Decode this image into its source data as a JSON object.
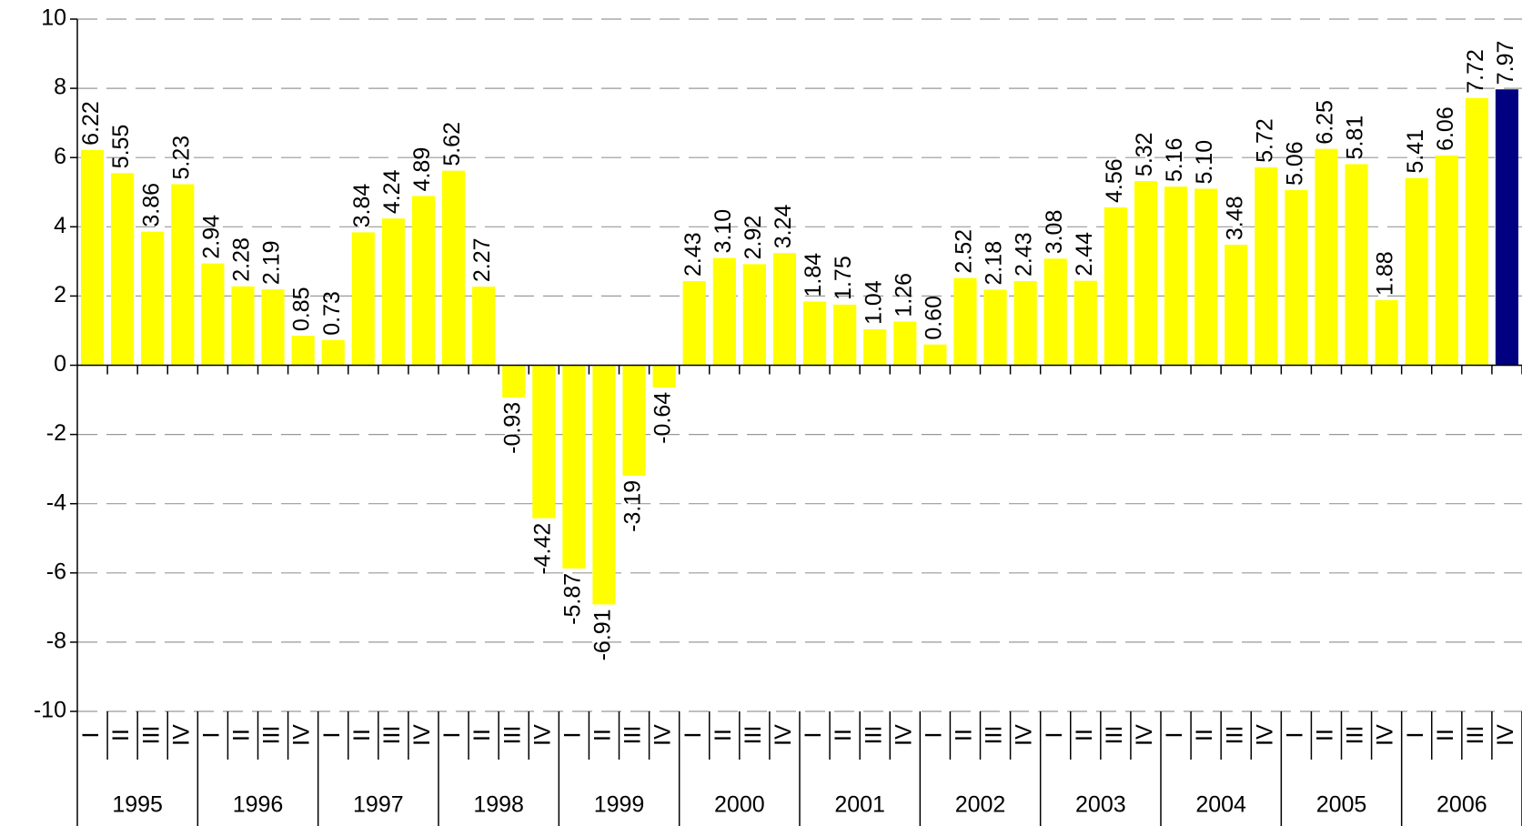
{
  "chart_data": {
    "type": "bar",
    "categories": [
      "I",
      "II",
      "III",
      "IV",
      "I",
      "II",
      "III",
      "IV",
      "I",
      "II",
      "III",
      "IV",
      "I",
      "II",
      "III",
      "IV",
      "I",
      "II",
      "III",
      "IV",
      "I",
      "II",
      "III",
      "IV",
      "I",
      "II",
      "III",
      "IV",
      "I",
      "II",
      "III",
      "IV",
      "I",
      "II",
      "III",
      "IV",
      "I",
      "II",
      "III",
      "IV",
      "I",
      "II",
      "III",
      "IV",
      "I",
      "II",
      "III",
      "IV"
    ],
    "years": [
      "1995",
      "1996",
      "1997",
      "1998",
      "1999",
      "2000",
      "2001",
      "2002",
      "2003",
      "2004",
      "2005",
      "2006"
    ],
    "values": [
      6.22,
      5.55,
      3.86,
      5.23,
      2.94,
      2.28,
      2.19,
      0.85,
      0.73,
      3.84,
      4.24,
      4.89,
      5.62,
      2.27,
      -0.93,
      -4.42,
      -5.87,
      -6.91,
      -3.19,
      -0.64,
      2.43,
      3.1,
      2.92,
      3.24,
      1.84,
      1.75,
      1.04,
      1.26,
      0.6,
      2.52,
      2.18,
      2.43,
      3.08,
      2.44,
      4.56,
      5.32,
      5.16,
      5.1,
      3.48,
      5.72,
      5.06,
      6.25,
      5.81,
      1.88,
      5.41,
      6.06,
      7.72,
      7.97
    ],
    "value_labels": [
      "6.22",
      "5.55",
      "3.86",
      "5.23",
      "2.94",
      "2.28",
      "2.19",
      "0.85",
      "0.73",
      "3.84",
      "4.24",
      "4.89",
      "5.62",
      "2.27",
      "-0.93",
      "-4.42",
      "-5.87",
      "-6.91",
      "-3.19",
      "-0.64",
      "2.43",
      "3.10",
      "2.92",
      "3.24",
      "1.84",
      "1.75",
      "1.04",
      "1.26",
      "0.60",
      "2.52",
      "2.18",
      "2.43",
      "3.08",
      "2.44",
      "4.56",
      "5.32",
      "5.16",
      "5.10",
      "3.48",
      "5.72",
      "5.06",
      "6.25",
      "5.81",
      "1.88",
      "5.41",
      "6.06",
      "7.72",
      "7.97"
    ],
    "colors": [
      "#ffff00",
      "#ffff00",
      "#ffff00",
      "#ffff00",
      "#ffff00",
      "#ffff00",
      "#ffff00",
      "#ffff00",
      "#ffff00",
      "#ffff00",
      "#ffff00",
      "#ffff00",
      "#ffff00",
      "#ffff00",
      "#ffff00",
      "#ffff00",
      "#ffff00",
      "#ffff00",
      "#ffff00",
      "#ffff00",
      "#ffff00",
      "#ffff00",
      "#ffff00",
      "#ffff00",
      "#ffff00",
      "#ffff00",
      "#ffff00",
      "#ffff00",
      "#ffff00",
      "#ffff00",
      "#ffff00",
      "#ffff00",
      "#ffff00",
      "#ffff00",
      "#ffff00",
      "#ffff00",
      "#ffff00",
      "#ffff00",
      "#ffff00",
      "#ffff00",
      "#ffff00",
      "#ffff00",
      "#ffff00",
      "#ffff00",
      "#ffff00",
      "#ffff00",
      "#ffff00",
      "#000080"
    ],
    "ylim": [
      -10,
      10
    ],
    "yticks": [
      -10,
      -8,
      -6,
      -4,
      -2,
      0,
      2,
      4,
      6,
      8,
      10
    ],
    "grid": true
  }
}
